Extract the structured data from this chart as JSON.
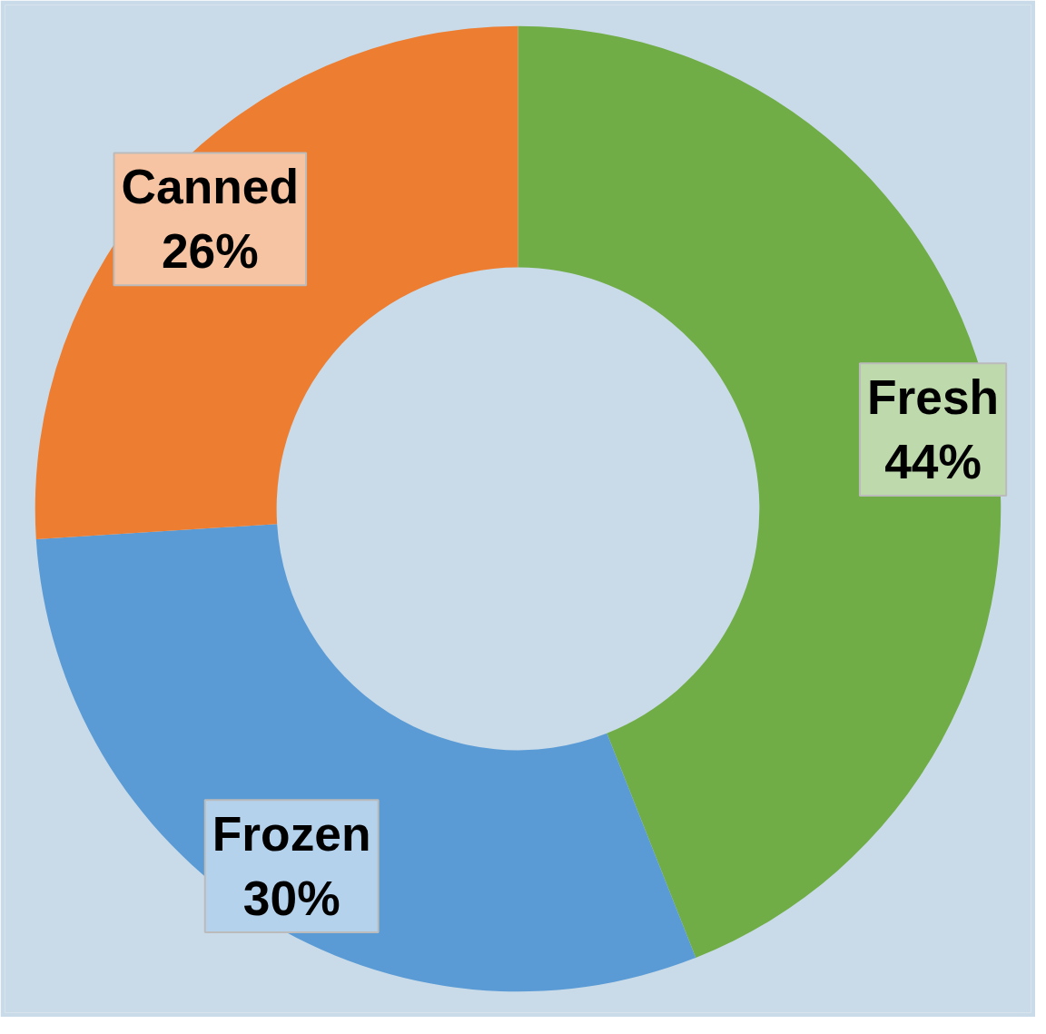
{
  "chart_data": {
    "type": "donut",
    "categories": [
      "Fresh",
      "Frozen",
      "Canned"
    ],
    "values": [
      44,
      30,
      26
    ],
    "value_labels": [
      "44%",
      "30%",
      "26%"
    ],
    "colors": [
      "#70ad47",
      "#5b9bd5",
      "#ed7d31"
    ]
  }
}
